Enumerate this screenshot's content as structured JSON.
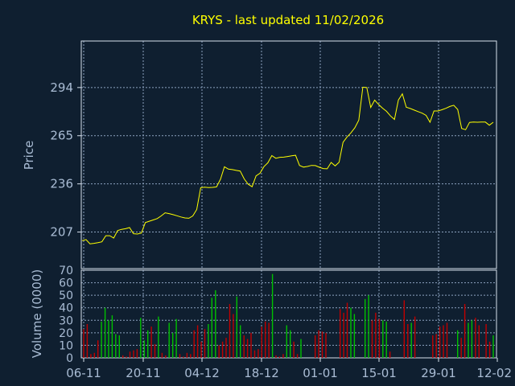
{
  "chart_data": [
    {
      "type": "line",
      "title": "KRYS - last updated 11/02/2026",
      "ylabel": "Price",
      "ylim": [
        185,
        322
      ],
      "yticks": [
        "207",
        "236",
        "265",
        "294"
      ],
      "xticks": [
        "06-11",
        "20-11",
        "04-12",
        "18-12",
        "01-01",
        "15-01",
        "29-01",
        "12-02"
      ],
      "grid": true,
      "colors": {
        "line": "#ffff00",
        "background": "#0f1f30",
        "grid": "#8da3c0",
        "text": "#a9bcd4"
      },
      "series": [
        {
          "values": [
            201.8,
            202.5,
            199.9,
            200.2,
            200.6,
            201.1,
            204.8,
            204.8,
            203.4,
            207.9,
            208.6,
            209.0,
            209.7,
            206.0,
            205.8,
            206.4,
            212.7,
            213.5,
            214.3,
            215.1,
            216.7,
            218.6,
            218.1,
            217.5,
            216.8,
            216.1,
            215.5,
            215.3,
            216.7,
            220.6,
            233.7,
            234.0,
            233.8,
            233.9,
            234.2,
            238.8,
            246.3,
            244.9,
            244.6,
            244.1,
            243.7,
            239.0,
            235.8,
            234.3,
            240.8,
            242.4,
            246.4,
            248.7,
            253.0,
            251.4,
            252.0,
            252.1,
            252.5,
            252.9,
            253.2,
            247.1,
            246.1,
            246.5,
            247.1,
            247.0,
            246.0,
            245.2,
            245.1,
            248.9,
            246.8,
            249.0,
            261.0,
            264.2,
            266.7,
            269.8,
            274.4,
            294.2,
            294.0,
            282.0,
            286.4,
            283.8,
            281.6,
            279.7,
            276.9,
            274.8,
            286.5,
            290.2,
            282.1,
            281.4,
            280.4,
            279.5,
            278.6,
            277.2,
            273.1,
            279.9,
            279.9,
            280.6,
            281.5,
            282.6,
            283.3,
            280.8,
            269.4,
            268.6,
            273.0,
            273.2,
            273.1,
            273.2,
            273.2,
            271.3,
            273.1
          ]
        }
      ]
    },
    {
      "type": "bar",
      "ylabel": "Volume (0000)",
      "ylim": [
        0,
        70
      ],
      "yticks": [
        "0",
        "10",
        "20",
        "30",
        "40",
        "50",
        "60",
        "70"
      ],
      "colors": {
        "up": "#00c000",
        "down": "#c00000"
      },
      "series": [
        {
          "name": "",
          "values": [
            23,
            27,
            3,
            4,
            14,
            29,
            40,
            30,
            34,
            19,
            18,
            2,
            1,
            5,
            6,
            7,
            32,
            14,
            22,
            25,
            11,
            33,
            4,
            2,
            28,
            20,
            31,
            3,
            1,
            4,
            3,
            22,
            26,
            13,
            23,
            27,
            48,
            54,
            10,
            13,
            16,
            43,
            35,
            49,
            26,
            18,
            15,
            20,
            6,
            7,
            25,
            29,
            28,
            67,
            2,
            1,
            3,
            26,
            22,
            13,
            3,
            15,
            0,
            0,
            0,
            18,
            22,
            21,
            20,
            0,
            0,
            0,
            39,
            36,
            44,
            40,
            35,
            0,
            0,
            47,
            50,
            30,
            36,
            31,
            30,
            29,
            5,
            0,
            0,
            0,
            46,
            27,
            28,
            33,
            0,
            0,
            0,
            0,
            18,
            19,
            25,
            26,
            28,
            0,
            0,
            22,
            16,
            43,
            28,
            30,
            32,
            26,
            0,
            27,
            13,
            18
          ],
          "up": [
            0,
            0,
            0,
            0,
            0,
            1,
            1,
            1,
            1,
            1,
            1,
            0,
            0,
            0,
            0,
            0,
            1,
            1,
            1,
            0,
            0,
            1,
            0,
            0,
            1,
            1,
            1,
            0,
            0,
            0,
            0,
            0,
            0,
            0,
            0,
            1,
            1,
            1,
            0,
            0,
            0,
            0,
            0,
            1,
            1,
            0,
            0,
            0,
            0,
            0,
            0,
            0,
            0,
            1,
            0,
            0,
            0,
            1,
            1,
            0,
            0,
            1,
            0,
            0,
            0,
            0,
            0,
            0,
            0,
            0,
            0,
            0,
            0,
            0,
            0,
            1,
            1,
            0,
            0,
            1,
            1,
            0,
            0,
            0,
            1,
            1,
            0,
            0,
            0,
            0,
            0,
            0,
            1,
            0,
            0,
            0,
            0,
            0,
            0,
            0,
            0,
            0,
            0,
            0,
            0,
            1,
            0,
            0,
            1,
            1,
            0,
            0,
            0,
            0,
            0,
            1
          ]
        }
      ]
    }
  ]
}
